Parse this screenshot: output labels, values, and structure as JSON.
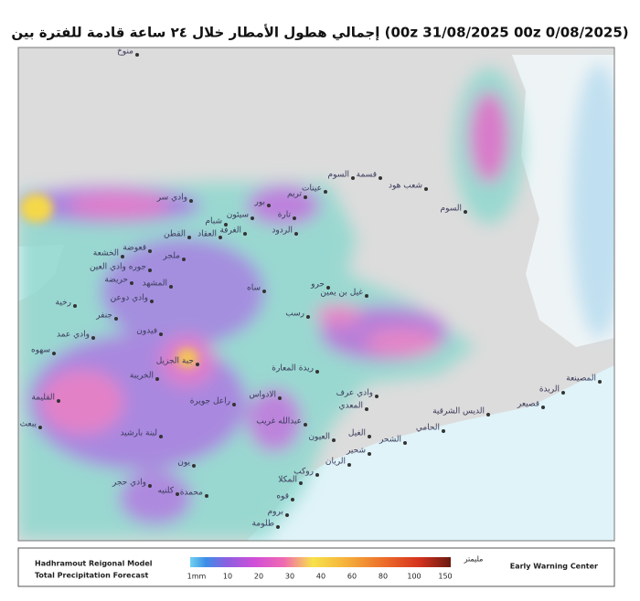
{
  "header": {
    "title": "إجمالي هطول الأمطار خلال ٢٤ ساعة قادمة للفترة بين (00z 31/08/2025 00z 0/08/2025)"
  },
  "map": {
    "places": [
      "منوخ",
      "وادي سر",
      "تريم",
      "عينات",
      "السوم",
      "قسمة",
      "شعب هود",
      "السوم",
      "بور",
      "تارة",
      "سيئون",
      "شبام",
      "الغرفة",
      "العقاد",
      "القطن",
      "الردود",
      "قعوضة",
      "ملجر",
      "الخشعة",
      "جوره وادي العين",
      "حريضة",
      "المشهد",
      "ساه",
      "حرو",
      "غيل بن يمين",
      "رخية",
      "وادي دوعن",
      "جنفر",
      "رسب",
      "وادي عمد",
      "فيدون",
      "سهوه",
      "جبة الجزيل",
      "الخريبة",
      "ريدة المعارة",
      "القليمة",
      "الادواس",
      "راعل جويرة",
      "وادي عرف",
      "المعدي",
      "الريدة",
      "المصينعة",
      "قصيعر",
      "الديس الشرقية",
      "الحامي",
      "عبدالله غريب",
      "الشحر",
      "الغيل",
      "العيون",
      "يبعث",
      "لبنة بارشيد",
      "شحير",
      "الريان",
      "يون",
      "روكب",
      "المكلا",
      "وادي حجر",
      "كلنيه",
      "محمدة",
      "قوه",
      "بروم",
      "طلومة"
    ]
  },
  "legend": {
    "model": "Hadhramout Reigonal Model",
    "product": "Total Precipitation Forecast",
    "center": "Early Warning Center",
    "unit": "مليمتر",
    "ticks": [
      "1mm",
      "10",
      "20",
      "30",
      "40",
      "60",
      "80",
      "100",
      "150"
    ]
  }
}
